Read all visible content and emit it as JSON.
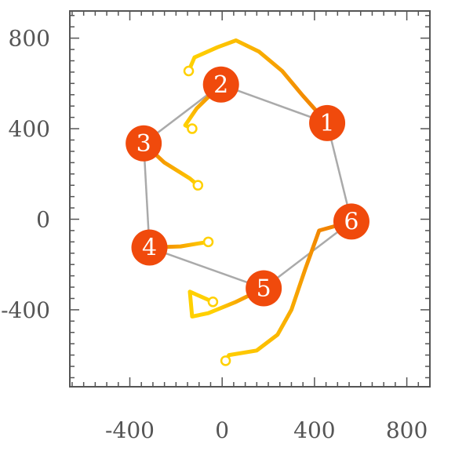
{
  "chart_data": {
    "type": "scatter",
    "title": "",
    "xlabel": "",
    "ylabel": "",
    "xlim": [
      -660,
      900
    ],
    "ylim": [
      -740,
      920
    ],
    "x_ticks": [
      -400,
      0,
      400,
      800
    ],
    "y_ticks": [
      -400,
      0,
      400,
      800
    ],
    "x_tick_labels": [
      "-400",
      "0",
      "400",
      "800"
    ],
    "y_tick_labels": [
      "-400",
      "0",
      "400",
      "800"
    ],
    "grid": false,
    "colors": {
      "node": "#f04a0c",
      "edge": "#aaaaaa",
      "trail_light": "#ffd000",
      "trail_dark": "#f07a00",
      "frame": "#555555"
    },
    "nodes": [
      {
        "label": "1",
        "x": 455,
        "y": 425
      },
      {
        "label": "2",
        "x": -5,
        "y": 595
      },
      {
        "label": "3",
        "x": -340,
        "y": 335
      },
      {
        "label": "4",
        "x": -315,
        "y": -125
      },
      {
        "label": "5",
        "x": 180,
        "y": -305
      },
      {
        "label": "6",
        "x": 560,
        "y": -10
      }
    ],
    "edges": [
      [
        1,
        2
      ],
      [
        2,
        3
      ],
      [
        3,
        4
      ],
      [
        4,
        5
      ],
      [
        5,
        6
      ],
      [
        6,
        1
      ]
    ],
    "trails": [
      {
        "from": 1,
        "points": [
          [
            -145,
            655
          ],
          [
            -120,
            715
          ],
          [
            -20,
            760
          ],
          [
            60,
            790
          ],
          [
            160,
            740
          ],
          [
            260,
            655
          ],
          [
            350,
            545
          ],
          [
            455,
            425
          ]
        ]
      },
      {
        "from": 2,
        "points": [
          [
            -130,
            400
          ],
          [
            -160,
            415
          ],
          [
            -110,
            490
          ],
          [
            -5,
            595
          ]
        ]
      },
      {
        "from": 3,
        "points": [
          [
            -105,
            150
          ],
          [
            -140,
            180
          ],
          [
            -250,
            250
          ],
          [
            -340,
            335
          ]
        ]
      },
      {
        "from": 4,
        "points": [
          [
            -60,
            -100
          ],
          [
            -180,
            -120
          ],
          [
            -315,
            -125
          ]
        ]
      },
      {
        "from": 5,
        "points": [
          [
            -40,
            -365
          ],
          [
            -140,
            -320
          ],
          [
            -130,
            -430
          ],
          [
            -60,
            -415
          ],
          [
            60,
            -365
          ],
          [
            180,
            -305
          ]
        ]
      },
      {
        "from": 6,
        "points": [
          [
            15,
            -625
          ],
          [
            30,
            -600
          ],
          [
            150,
            -580
          ],
          [
            240,
            -510
          ],
          [
            300,
            -400
          ],
          [
            360,
            -220
          ],
          [
            420,
            -50
          ],
          [
            560,
            -10
          ]
        ]
      }
    ]
  }
}
